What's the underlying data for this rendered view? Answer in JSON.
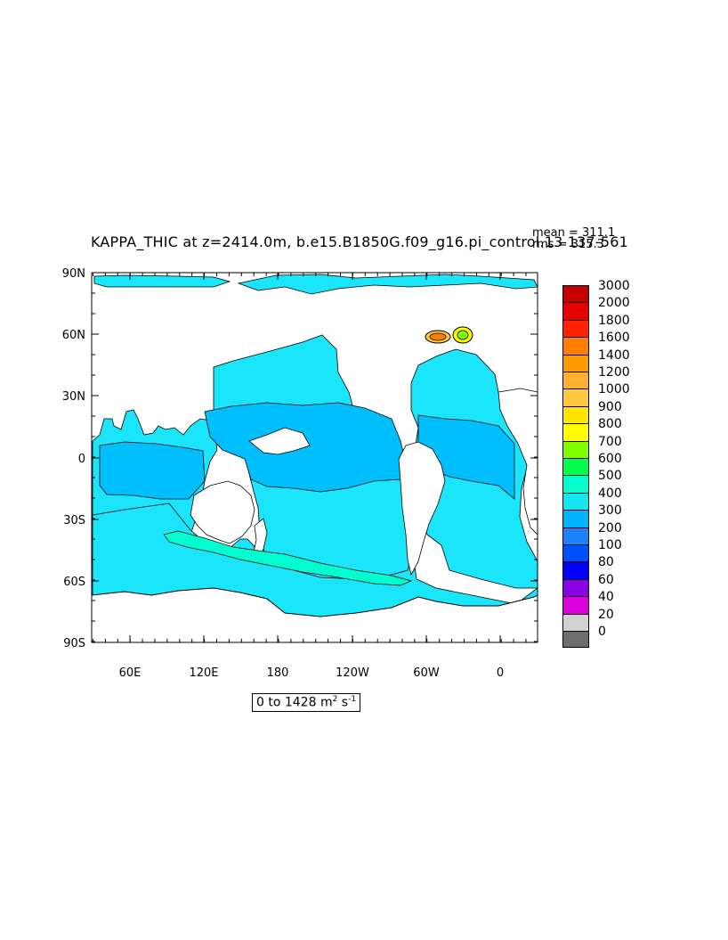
{
  "title": "KAPPA_THIC at z=2414.0m, b.e15.B1850G.f09_g16.pi_control.13 137-561",
  "stats": {
    "mean": "mean = 311.1",
    "rms": "rms = 315.3"
  },
  "range": {
    "prefix": "0 to 1428 m",
    "exp1": "2",
    "mid": " s",
    "exp2": "-1"
  },
  "axes": {
    "lat_labels": [
      "90N",
      "60N",
      "30N",
      "0",
      "30S",
      "60S",
      "90S"
    ],
    "lon_labels": [
      "60E",
      "120E",
      "180",
      "120W",
      "60W",
      "0"
    ]
  },
  "legend": {
    "levels": [
      "3000",
      "2000",
      "1800",
      "1600",
      "1400",
      "1200",
      "1000",
      "900",
      "800",
      "700",
      "600",
      "500",
      "400",
      "300",
      "200",
      "100",
      "80",
      "60",
      "40",
      "20",
      "0"
    ],
    "colors": [
      "#c40000",
      "#e60000",
      "#ff2200",
      "#ff8000",
      "#ff9a00",
      "#ffb030",
      "#ffc83c",
      "#ffe600",
      "#ffff00",
      "#7dff00",
      "#00ff4d",
      "#00ffcc",
      "#17e6f0",
      "#00b4ff",
      "#1e82ff",
      "#0050ff",
      "#0000ff",
      "#8c00e6",
      "#dc00dc",
      "#d2d2d2",
      "#6e6e6e"
    ]
  },
  "colors": {
    "ocean_main": "#1ae5fb",
    "ocean_mid": "#00bfff",
    "ocean_high": "#00ffd0",
    "land": "#ffffff"
  },
  "map_data": {
    "type": "filled-contour-map",
    "variable": "KAPPA_THIC",
    "depth": "z=2414.0m",
    "lat_range": [
      -90,
      90
    ],
    "lon_range": [
      30,
      390
    ],
    "mean": 311.1,
    "rms": 315.3,
    "min": 0,
    "max": 1428
  }
}
